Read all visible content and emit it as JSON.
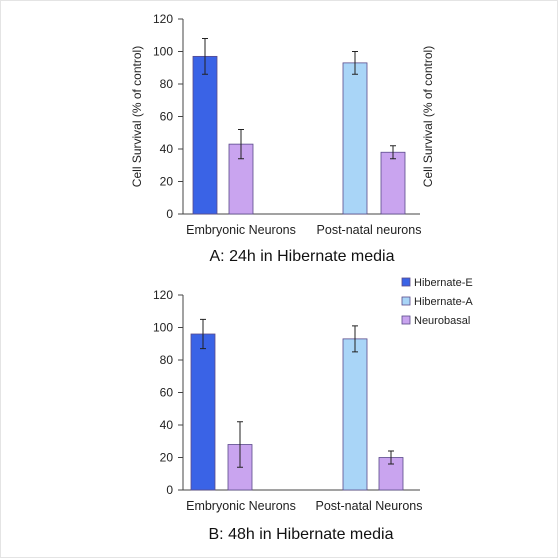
{
  "chart_data": [
    {
      "type": "bar",
      "caption": "A: 24h in Hibernate media",
      "ylabel_left": "Cell Survival (% of control)",
      "ylabel_right": "Cell Survival (% of control)",
      "ylim": [
        0,
        120
      ],
      "yticks": [
        "0",
        "20",
        "40",
        "60",
        "80",
        "100",
        "120"
      ],
      "categories": [
        "Embryonic Neurons",
        "Post-natal neurons"
      ],
      "series": [
        {
          "name": "Hibernate-E",
          "color": "#3a63e6",
          "values": [
            97,
            null
          ],
          "errors": [
            11,
            null
          ]
        },
        {
          "name": "Hibernate-A",
          "color": "#a9d5f7",
          "values": [
            null,
            93
          ],
          "errors": [
            null,
            7
          ]
        },
        {
          "name": "Neurobasal",
          "color": "#c9a4ef",
          "values": [
            43,
            38
          ],
          "errors": [
            9,
            4
          ]
        }
      ]
    },
    {
      "type": "bar",
      "caption": "B: 48h in Hibernate media",
      "ylim": [
        0,
        120
      ],
      "yticks": [
        "0",
        "20",
        "40",
        "60",
        "80",
        "100",
        "120"
      ],
      "categories": [
        "Embryonic Neurons",
        "Post-natal Neurons"
      ],
      "legend": [
        "Hibernate-E",
        "Hibernate-A",
        "Neurobasal"
      ],
      "series": [
        {
          "name": "Hibernate-E",
          "color": "#3a63e6",
          "values": [
            96,
            null
          ],
          "errors": [
            9,
            null
          ]
        },
        {
          "name": "Hibernate-A",
          "color": "#a9d5f7",
          "values": [
            null,
            93
          ],
          "errors": [
            null,
            8
          ]
        },
        {
          "name": "Neurobasal",
          "color": "#c9a4ef",
          "values": [
            28,
            20
          ],
          "errors": [
            14,
            4
          ]
        }
      ]
    }
  ]
}
